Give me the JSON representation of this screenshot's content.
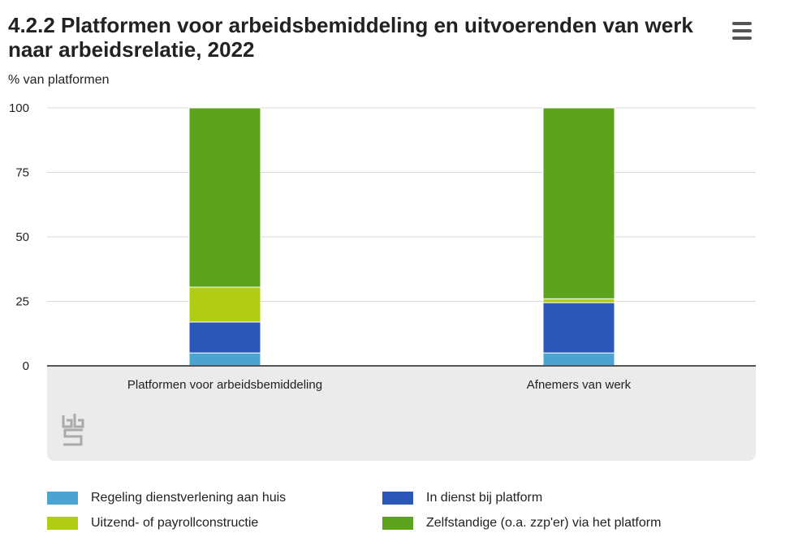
{
  "header": {
    "title": "4.2.2 Platformen voor arbeidsbemiddeling en uitvoerenden van werk naar arbeidsrelatie, 2022",
    "menu_icon": "hamburger-menu-icon"
  },
  "colors": {
    "regeling": "#4aa3d0",
    "in_dienst": "#2a57b8",
    "uitzend": "#b1cd13",
    "zelfstandige": "#5ea31d",
    "plot_band": "#ebebeb",
    "grid": "#d9d9d9",
    "axis": "#555555"
  },
  "chart_data": {
    "type": "bar",
    "stacked": true,
    "title": "4.2.2 Platformen voor arbeidsbemiddeling en uitvoerenden van werk naar arbeidsrelatie, 2022",
    "xlabel": "",
    "ylabel": "% van platformen",
    "ylim": [
      0,
      100
    ],
    "yticks": [
      0,
      25,
      50,
      75,
      100
    ],
    "grid": true,
    "legend_position": "bottom",
    "categories": [
      "Platformen voor arbeidsbemiddeling",
      "Afnemers van werk"
    ],
    "series": [
      {
        "name": "Regeling dienstverlening aan huis",
        "color": "#4aa3d0",
        "values": [
          5,
          5
        ]
      },
      {
        "name": "In dienst bij platform",
        "color": "#2a57b8",
        "values": [
          12,
          19.5
        ]
      },
      {
        "name": "Uitzend- of payrollconstructie",
        "color": "#b1cd13",
        "values": [
          13.5,
          1.5
        ]
      },
      {
        "name": "Zelfstandige (o.a. zzp'er) via het platform",
        "color": "#5ea31d",
        "values": [
          69.5,
          74
        ]
      }
    ]
  },
  "legend": {
    "items": [
      {
        "label": "Regeling dienstverlening aan huis",
        "color": "#4aa3d0"
      },
      {
        "label": "In dienst bij platform",
        "color": "#2a57b8"
      },
      {
        "label": "Uitzend- of payrollconstructie",
        "color": "#b1cd13"
      },
      {
        "label": "Zelfstandige (o.a. zzp'er) via het platform",
        "color": "#5ea31d"
      }
    ]
  },
  "logo": {
    "icon": "cbs-logo-icon"
  }
}
